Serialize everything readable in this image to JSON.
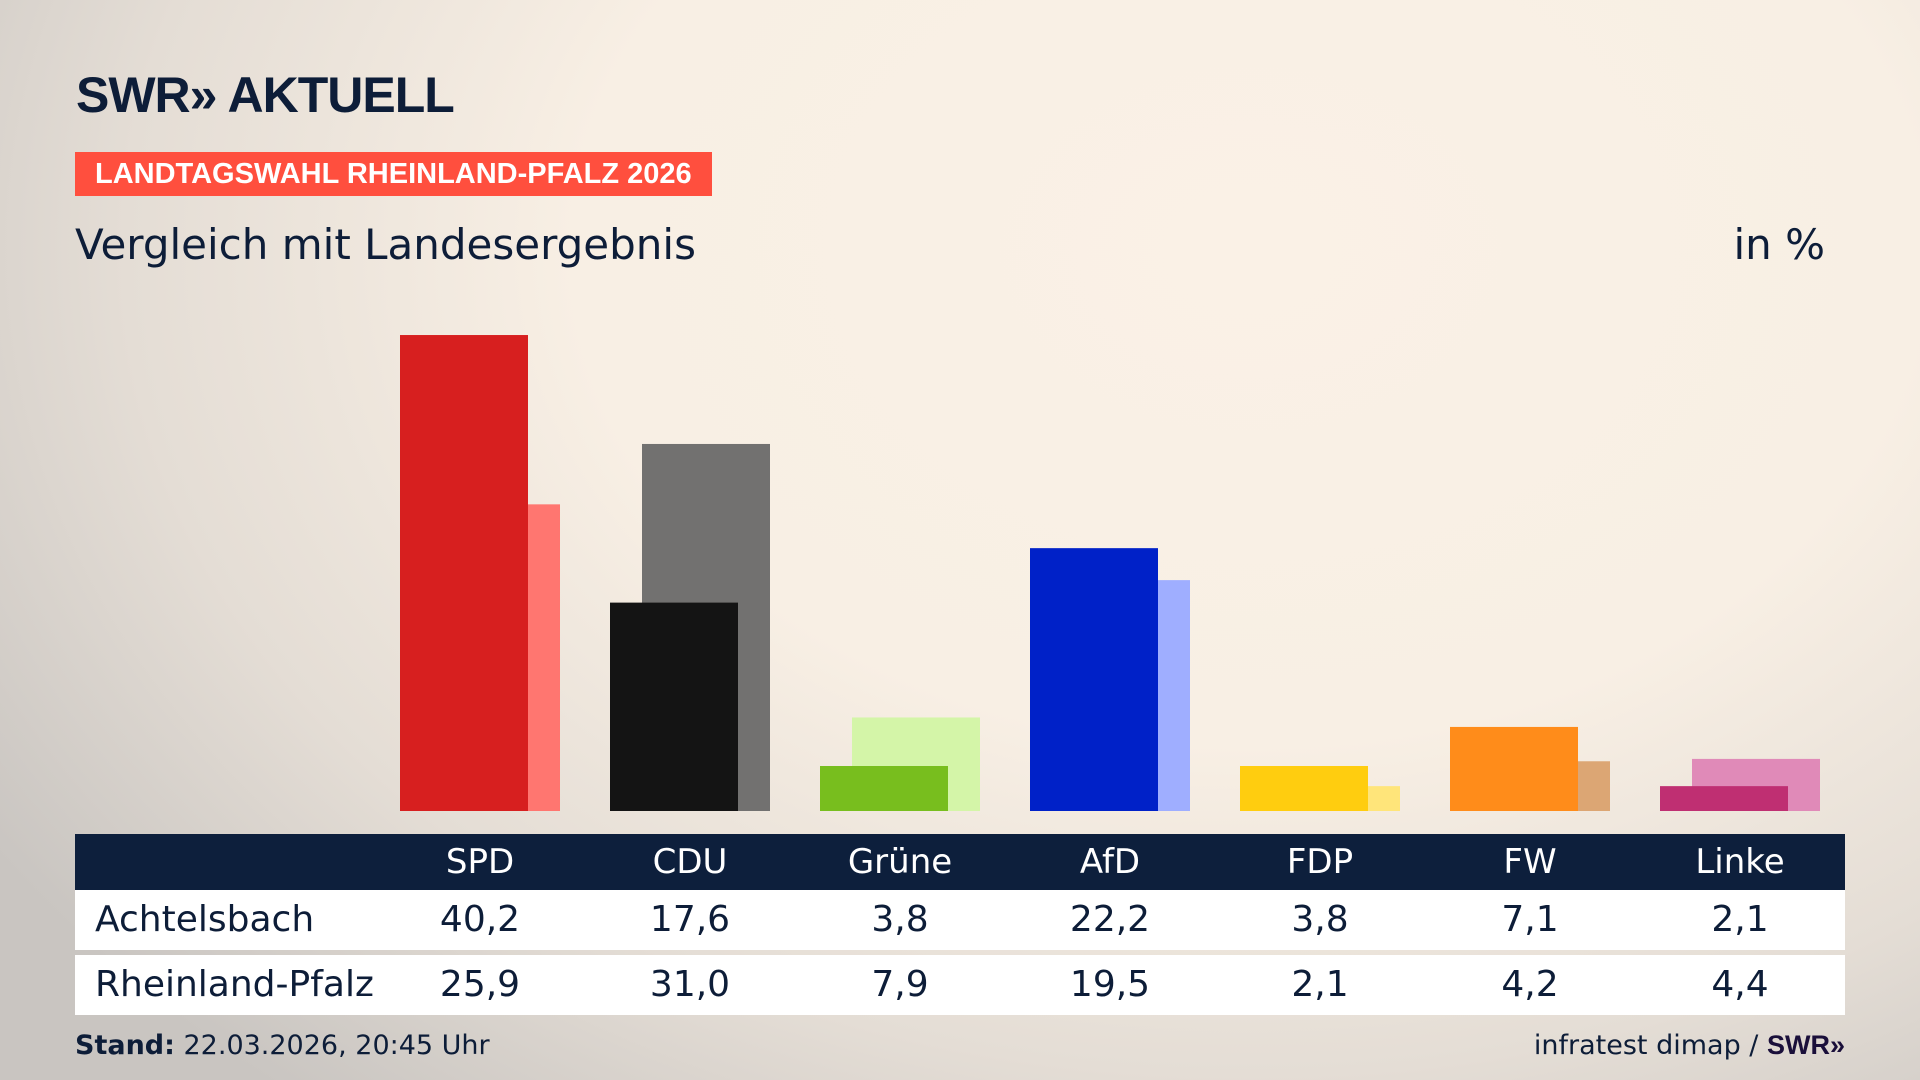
{
  "header": {
    "logo": "SWR» AKTUELL",
    "banner": "LANDTAGSWAHL RHEINLAND-PFALZ 2026",
    "subtitle": "Vergleich mit Landesergebnis",
    "unit": "in %"
  },
  "footer": {
    "stand_label": "Stand:",
    "stand_value": " 22.03.2026, 20:45 Uhr",
    "source": "infratest dimap / ",
    "source_logo": "SWR»"
  },
  "chart_data": {
    "type": "bar",
    "categories": [
      "SPD",
      "CDU",
      "Grüne",
      "AfD",
      "FDP",
      "FW",
      "Linke"
    ],
    "series": [
      {
        "name": "Achtelsbach",
        "values": [
          40.2,
          17.6,
          3.8,
          22.2,
          3.8,
          7.1,
          2.1
        ],
        "labels": [
          "40,2",
          "17,6",
          "3,8",
          "22,2",
          "3,8",
          "7,1",
          "2,1"
        ]
      },
      {
        "name": "Rheinland-Pfalz",
        "values": [
          25.9,
          31.0,
          7.9,
          19.5,
          2.1,
          4.2,
          4.4
        ],
        "labels": [
          "25,9",
          "31,0",
          "7,9",
          "19,5",
          "2,1",
          "4,2",
          "4,4"
        ]
      }
    ],
    "colors": {
      "primary": [
        "#d71f1f",
        "#141414",
        "#78be1e",
        "#0021c8",
        "#ffcd0f",
        "#ff8c1a",
        "#bf2f72"
      ],
      "secondary": [
        "#ff7670",
        "#727170",
        "#d4f5a8",
        "#9faeff",
        "#ffe57a",
        "#dca674",
        "#e08ab8"
      ]
    },
    "ylim": [
      0,
      42
    ],
    "grid": false
  }
}
